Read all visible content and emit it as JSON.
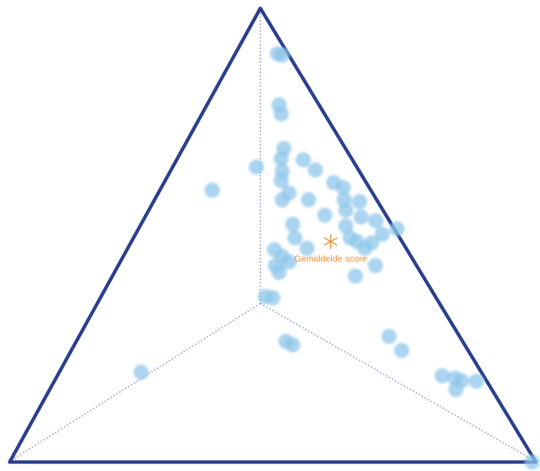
{
  "chart_data": {
    "type": "scatter",
    "color": "#8ec6ea",
    "mean_color": "#e8913a",
    "xlim": [
      0,
      1
    ],
    "ylim": [
      0,
      1
    ],
    "x": [
      0.509,
      0.518,
      0.512,
      0.516,
      0.469,
      0.385,
      0.521,
      0.516,
      0.518,
      0.516,
      0.531,
      0.518,
      0.558,
      0.581,
      0.568,
      0.616,
      0.634,
      0.636,
      0.639,
      0.665,
      0.668,
      0.599,
      0.639,
      0.647,
      0.696,
      0.708,
      0.736,
      0.538,
      0.542,
      0.565,
      0.503,
      0.518,
      0.531,
      0.505,
      0.512,
      0.688,
      0.695,
      0.657,
      0.66,
      0.675,
      0.486,
      0.5,
      0.525,
      0.538,
      0.721,
      0.745,
      0.25,
      0.822,
      0.846,
      0.859,
      0.848,
      0.887,
      0.993
    ],
    "y": [
      0.9,
      0.897,
      0.787,
      0.767,
      0.65,
      0.599,
      0.691,
      0.669,
      0.641,
      0.62,
      0.593,
      0.578,
      0.666,
      0.644,
      0.578,
      0.616,
      0.605,
      0.578,
      0.555,
      0.574,
      0.54,
      0.544,
      0.52,
      0.494,
      0.532,
      0.502,
      0.514,
      0.524,
      0.494,
      0.471,
      0.468,
      0.453,
      0.441,
      0.433,
      0.418,
      0.483,
      0.433,
      0.41,
      0.486,
      0.471,
      0.365,
      0.362,
      0.266,
      0.258,
      0.277,
      0.246,
      0.198,
      0.19,
      0.185,
      0.179,
      0.16,
      0.178,
      0.0
    ],
    "mean": {
      "label": "Gemiddelde score",
      "x": 0.61,
      "y": 0.486
    }
  }
}
